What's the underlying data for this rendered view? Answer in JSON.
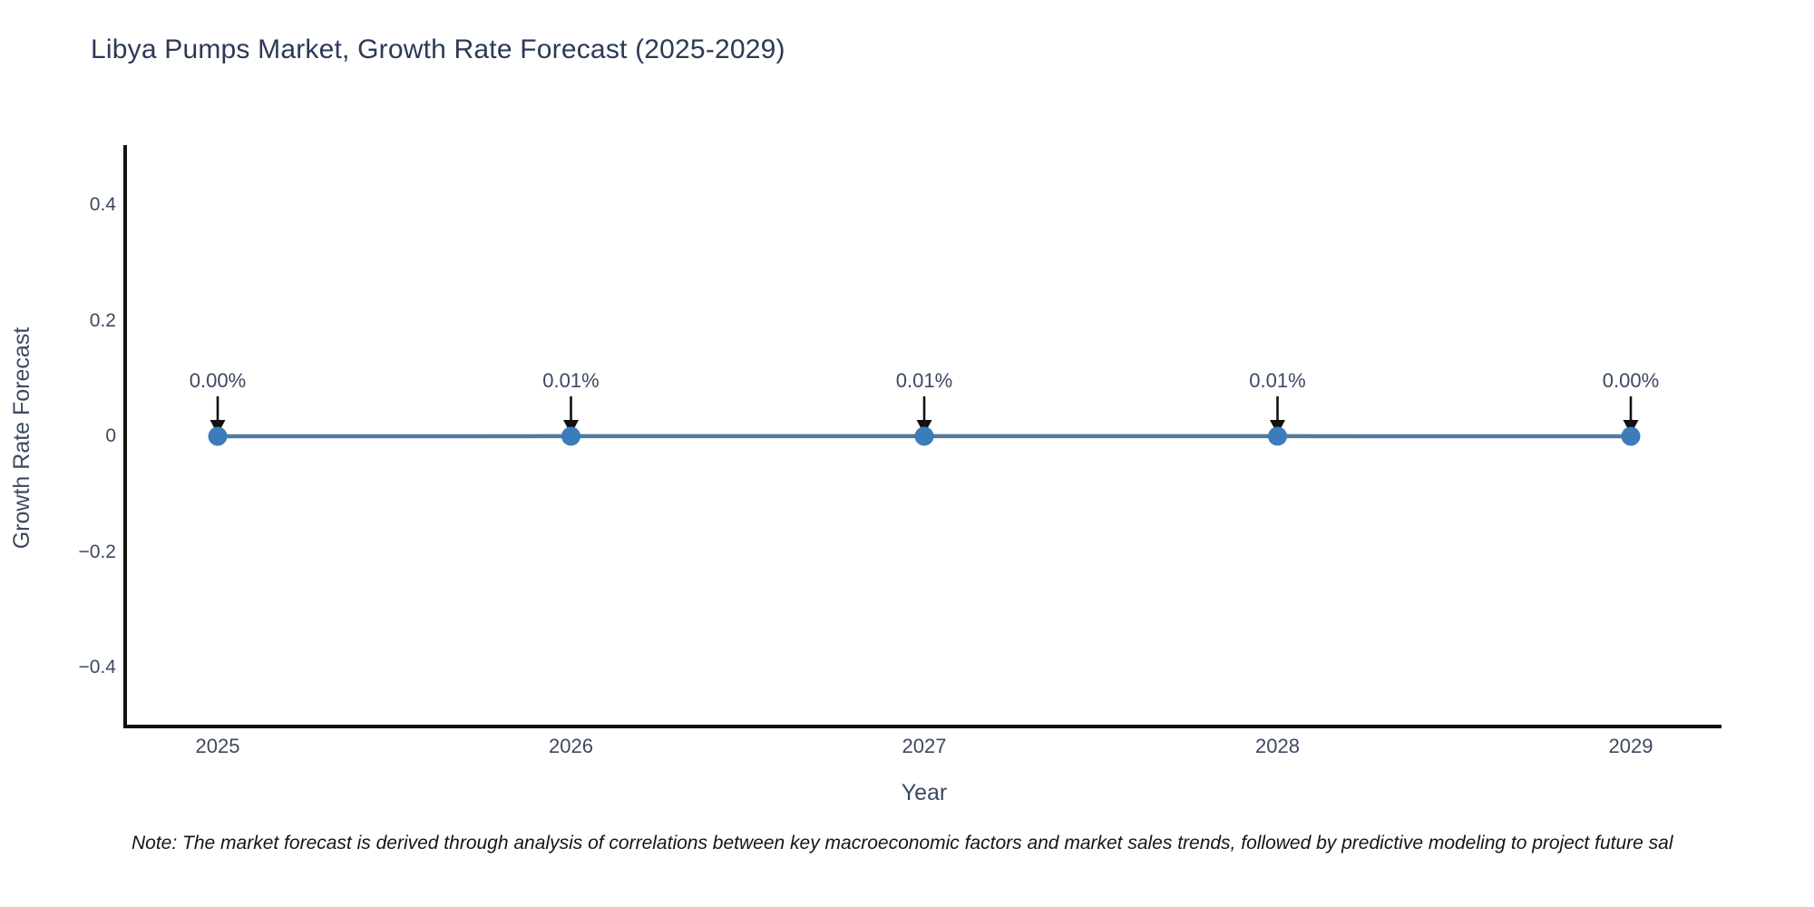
{
  "note": "Note: The market forecast is derived through analysis of correlations between key macroeconomic factors and market sales trends, followed by predictive modeling to project future sal",
  "colors": {
    "title_text": "#2b3a55",
    "axis_text": "#3c4961",
    "axis_line": "#111111",
    "line": "#527a9f",
    "marker": "#3b7cba",
    "arrow": "#111111",
    "note_text": "#151515",
    "background": "#ffffff"
  },
  "chart_data": {
    "type": "line",
    "title": "Libya Pumps Market, Growth Rate Forecast (2025-2029)",
    "xlabel": "Year",
    "ylabel": "Growth Rate Forecast",
    "categories": [
      "2025",
      "2026",
      "2027",
      "2028",
      "2029"
    ],
    "values": [
      0.0,
      0.0001,
      0.0001,
      0.0001,
      0.0
    ],
    "point_labels": [
      "0.00%",
      "0.01%",
      "0.01%",
      "0.01%",
      "0.00%"
    ],
    "ylim": [
      -0.5,
      0.5
    ],
    "yticks": [
      {
        "v": 0.4,
        "label": "0.4"
      },
      {
        "v": 0.2,
        "label": "0.2"
      },
      {
        "v": 0,
        "label": "0"
      },
      {
        "v": -0.2,
        "label": "−0.2"
      },
      {
        "v": -0.4,
        "label": "−0.4"
      }
    ],
    "grid": false,
    "legend": "none",
    "marker_style": "circle",
    "annotation_arrow": "down"
  }
}
